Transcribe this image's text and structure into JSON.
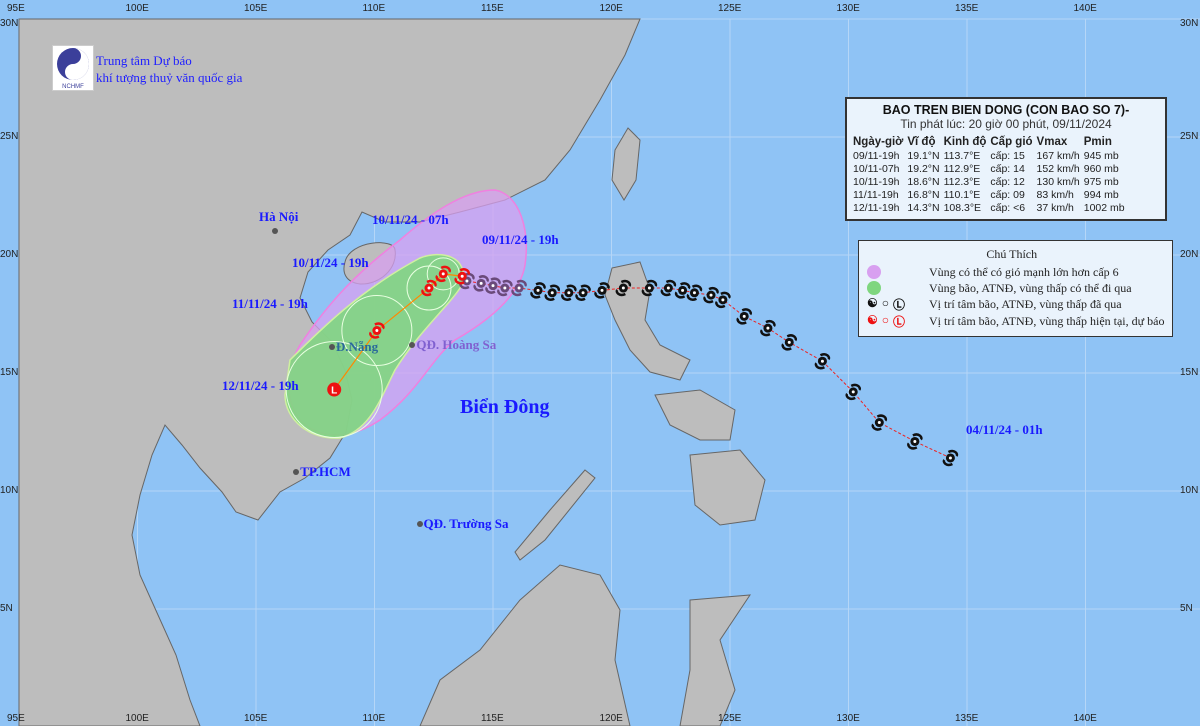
{
  "header": {
    "org_line1": "Trung tâm Dự báo",
    "org_line2": "khí tượng thuỷ văn quốc gia",
    "logo_text": "NCHMF"
  },
  "axes": {
    "lon_ticks": [
      "95E",
      "100E",
      "105E",
      "110E",
      "115E",
      "120E",
      "125E",
      "130E",
      "135E",
      "140E"
    ],
    "lat_ticks": [
      "30N",
      "25N",
      "20N",
      "15N",
      "10N",
      "5N"
    ]
  },
  "bulletin": {
    "title": "BAO TREN BIEN DONG (CON BAO SO 7)-",
    "issued": "Tin phát lúc: 20 giờ 00 phút, 09/11/2024",
    "columns": [
      "Ngày-giờ",
      "Vĩ độ",
      "Kinh độ",
      "Cấp gió",
      "Vmax",
      "Pmin"
    ],
    "rows": [
      [
        "09/11-19h",
        "19.1°N",
        "113.7°E",
        "cấp: 15",
        "167 km/h",
        "945 mb"
      ],
      [
        "10/11-07h",
        "19.2°N",
        "112.9°E",
        "cấp: 14",
        "152 km/h",
        "960 mb"
      ],
      [
        "10/11-19h",
        "18.6°N",
        "112.3°E",
        "cấp: 12",
        "130 km/h",
        "975 mb"
      ],
      [
        "11/11-19h",
        "16.8°N",
        "110.1°E",
        "cấp: 09",
        "83 km/h",
        "994 mb"
      ],
      [
        "12/11-19h",
        "14.3°N",
        "108.3°E",
        "cấp: <6",
        "37 km/h",
        "1002 mb"
      ]
    ]
  },
  "legend": {
    "title": "Chú Thích",
    "items": [
      {
        "label": "Vùng có thể có gió mạnh lớn hơn cấp 6",
        "color": "#d8a0f0"
      },
      {
        "label": "Vùng bão, ATNĐ, vùng thấp có thể đi qua",
        "color": "#7fd67f"
      },
      {
        "label": "Vị trí tâm bão, ATNĐ, vùng thấp đã qua",
        "color": "#111111"
      },
      {
        "label": "Vị trí tâm bão, ATNĐ, vùng thấp hiện tại, dự báo",
        "color": "#ee1111"
      }
    ]
  },
  "places": [
    {
      "name": "Hà Nội",
      "lon": 105.8,
      "lat": 21.0
    },
    {
      "name": "Đ.Nẵng",
      "lon": 108.2,
      "lat": 16.1
    },
    {
      "name": "QĐ. Hoàng Sa",
      "lon": 111.6,
      "lat": 16.2
    },
    {
      "name": "TP.HCM",
      "lon": 106.7,
      "lat": 10.8
    },
    {
      "name": "QĐ. Trường Sa",
      "lon": 111.9,
      "lat": 8.6
    }
  ],
  "sea_label": "Biển Đông",
  "time_labels": [
    "10/11/24 - 07h",
    "09/11/24 - 19h",
    "10/11/24 - 19h",
    "11/11/24 - 19h",
    "12/11/24 - 19h",
    "04/11/24 - 01h"
  ],
  "track_past": [
    [
      134.3,
      11.4
    ],
    [
      132.8,
      12.1
    ],
    [
      131.3,
      12.9
    ],
    [
      130.2,
      14.2
    ],
    [
      128.9,
      15.5
    ],
    [
      127.5,
      16.3
    ],
    [
      126.6,
      16.9
    ],
    [
      125.6,
      17.4
    ],
    [
      124.7,
      18.1
    ],
    [
      124.2,
      18.3
    ],
    [
      123.5,
      18.4
    ],
    [
      123.0,
      18.5
    ],
    [
      122.4,
      18.6
    ],
    [
      121.6,
      18.6
    ],
    [
      120.5,
      18.6
    ],
    [
      119.6,
      18.5
    ],
    [
      118.8,
      18.4
    ],
    [
      118.2,
      18.4
    ],
    [
      117.5,
      18.4
    ],
    [
      116.9,
      18.5
    ],
    [
      116.1,
      18.6
    ],
    [
      115.5,
      18.6
    ],
    [
      115.0,
      18.7
    ],
    [
      114.5,
      18.8
    ],
    [
      113.9,
      18.9
    ]
  ],
  "track_forecast": [
    {
      "lon": 113.7,
      "lat": 19.1,
      "type": "storm"
    },
    {
      "lon": 112.9,
      "lat": 19.2,
      "type": "storm"
    },
    {
      "lon": 112.3,
      "lat": 18.6,
      "type": "storm"
    },
    {
      "lon": 110.1,
      "lat": 16.8,
      "type": "storm"
    },
    {
      "lon": 108.3,
      "lat": 14.3,
      "type": "low"
    }
  ],
  "colors": {
    "sea": "#8fc3f5",
    "land": "#bdbdbd",
    "wind_zone": "#d8a0f0",
    "storm_zone": "#7fd67f",
    "track_forecast": "#ee1111",
    "track_past": "#111111"
  }
}
